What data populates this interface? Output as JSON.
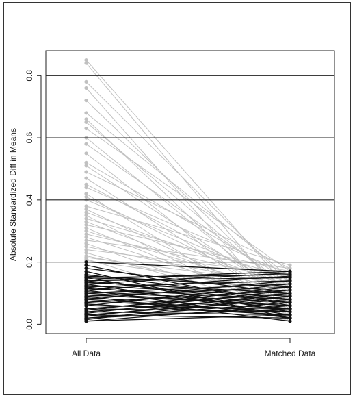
{
  "chart_data": {
    "type": "line",
    "title": "",
    "xlabel": "",
    "ylabel": "Absolute Standardized Diff in Means",
    "categories": [
      "All Data",
      "Matched Data"
    ],
    "ylim": [
      -0.03,
      0.88
    ],
    "yticks": [
      0.0,
      0.2,
      0.4,
      0.6,
      0.8
    ],
    "ytick_labels": [
      "0.0",
      "0.2",
      "0.4",
      "0.6",
      "0.8"
    ],
    "reference_lines": [
      0.2,
      0.4,
      0.6,
      0.8
    ],
    "grid": false,
    "legend": "none",
    "colors": {
      "improved": "#c0c0c0",
      "below_threshold": "#111111",
      "reference_line": "#222222"
    },
    "series": [
      {
        "values": [
          0.85,
          0.11
        ]
      },
      {
        "values": [
          0.84,
          0.06
        ]
      },
      {
        "values": [
          0.78,
          0.13
        ]
      },
      {
        "values": [
          0.76,
          0.02
        ]
      },
      {
        "values": [
          0.72,
          0.09
        ]
      },
      {
        "values": [
          0.68,
          0.15
        ]
      },
      {
        "values": [
          0.66,
          0.04
        ]
      },
      {
        "values": [
          0.65,
          0.1
        ]
      },
      {
        "values": [
          0.63,
          0.17
        ]
      },
      {
        "values": [
          0.6,
          0.07
        ]
      },
      {
        "values": [
          0.58,
          0.12
        ]
      },
      {
        "values": [
          0.55,
          0.03
        ]
      },
      {
        "values": [
          0.52,
          0.14
        ]
      },
      {
        "values": [
          0.51,
          0.08
        ]
      },
      {
        "values": [
          0.49,
          0.18
        ]
      },
      {
        "values": [
          0.47,
          0.05
        ]
      },
      {
        "values": [
          0.45,
          0.11
        ]
      },
      {
        "values": [
          0.44,
          0.16
        ]
      },
      {
        "values": [
          0.42,
          0.01
        ]
      },
      {
        "values": [
          0.41,
          0.09
        ]
      },
      {
        "values": [
          0.4,
          0.13
        ]
      },
      {
        "values": [
          0.38,
          0.19
        ]
      },
      {
        "values": [
          0.37,
          0.06
        ]
      },
      {
        "values": [
          0.36,
          0.12
        ]
      },
      {
        "values": [
          0.35,
          0.02
        ]
      },
      {
        "values": [
          0.34,
          0.15
        ]
      },
      {
        "values": [
          0.33,
          0.08
        ]
      },
      {
        "values": [
          0.32,
          0.17
        ]
      },
      {
        "values": [
          0.31,
          0.04
        ]
      },
      {
        "values": [
          0.3,
          0.1
        ]
      },
      {
        "values": [
          0.29,
          0.14
        ]
      },
      {
        "values": [
          0.28,
          0.07
        ]
      },
      {
        "values": [
          0.27,
          0.18
        ]
      },
      {
        "values": [
          0.26,
          0.03
        ]
      },
      {
        "values": [
          0.25,
          0.12
        ]
      },
      {
        "values": [
          0.24,
          0.16
        ]
      },
      {
        "values": [
          0.23,
          0.05
        ]
      },
      {
        "values": [
          0.22,
          0.09
        ]
      },
      {
        "values": [
          0.215,
          0.13
        ]
      },
      {
        "values": [
          0.21,
          0.01
        ]
      },
      {
        "values": [
          0.205,
          0.11
        ]
      },
      {
        "values": [
          0.2,
          0.17
        ]
      },
      {
        "values": [
          0.19,
          0.06
        ]
      },
      {
        "values": [
          0.18,
          0.1
        ]
      },
      {
        "values": [
          0.17,
          0.02
        ]
      },
      {
        "values": [
          0.16,
          0.08
        ]
      },
      {
        "values": [
          0.15,
          0.04
        ]
      },
      {
        "values": [
          0.14,
          0.07
        ]
      },
      {
        "values": [
          0.13,
          0.03
        ]
      },
      {
        "values": [
          0.12,
          0.05
        ]
      },
      {
        "values": [
          0.11,
          0.02
        ]
      },
      {
        "values": [
          0.1,
          0.06
        ]
      },
      {
        "values": [
          0.09,
          0.01
        ]
      },
      {
        "values": [
          0.08,
          0.04
        ]
      },
      {
        "values": [
          0.15,
          0.16
        ]
      },
      {
        "values": [
          0.145,
          0.17
        ]
      },
      {
        "values": [
          0.14,
          0.15
        ]
      },
      {
        "values": [
          0.13,
          0.165
        ]
      },
      {
        "values": [
          0.12,
          0.14
        ]
      },
      {
        "values": [
          0.11,
          0.155
        ]
      },
      {
        "values": [
          0.1,
          0.13
        ]
      },
      {
        "values": [
          0.09,
          0.12
        ]
      },
      {
        "values": [
          0.08,
          0.14
        ]
      },
      {
        "values": [
          0.07,
          0.11
        ]
      },
      {
        "values": [
          0.06,
          0.13
        ]
      },
      {
        "values": [
          0.05,
          0.1
        ]
      },
      {
        "values": [
          0.045,
          0.12
        ]
      },
      {
        "values": [
          0.04,
          0.09
        ]
      },
      {
        "values": [
          0.035,
          0.11
        ]
      },
      {
        "values": [
          0.03,
          0.08
        ]
      },
      {
        "values": [
          0.025,
          0.1
        ]
      },
      {
        "values": [
          0.02,
          0.07
        ]
      },
      {
        "values": [
          0.015,
          0.09
        ]
      },
      {
        "values": [
          0.01,
          0.06
        ]
      },
      {
        "values": [
          0.06,
          0.05
        ]
      },
      {
        "values": [
          0.05,
          0.04
        ]
      },
      {
        "values": [
          0.04,
          0.03
        ]
      },
      {
        "values": [
          0.03,
          0.02
        ]
      },
      {
        "values": [
          0.02,
          0.05
        ]
      },
      {
        "values": [
          0.01,
          0.03
        ]
      },
      {
        "values": [
          0.155,
          0.12
        ]
      },
      {
        "values": [
          0.135,
          0.1
        ]
      },
      {
        "values": [
          0.125,
          0.09
        ]
      },
      {
        "values": [
          0.115,
          0.08
        ]
      },
      {
        "values": [
          0.105,
          0.07
        ]
      },
      {
        "values": [
          0.095,
          0.06
        ]
      },
      {
        "values": [
          0.085,
          0.05
        ]
      },
      {
        "values": [
          0.075,
          0.04
        ]
      },
      {
        "values": [
          0.065,
          0.03
        ]
      }
    ]
  }
}
